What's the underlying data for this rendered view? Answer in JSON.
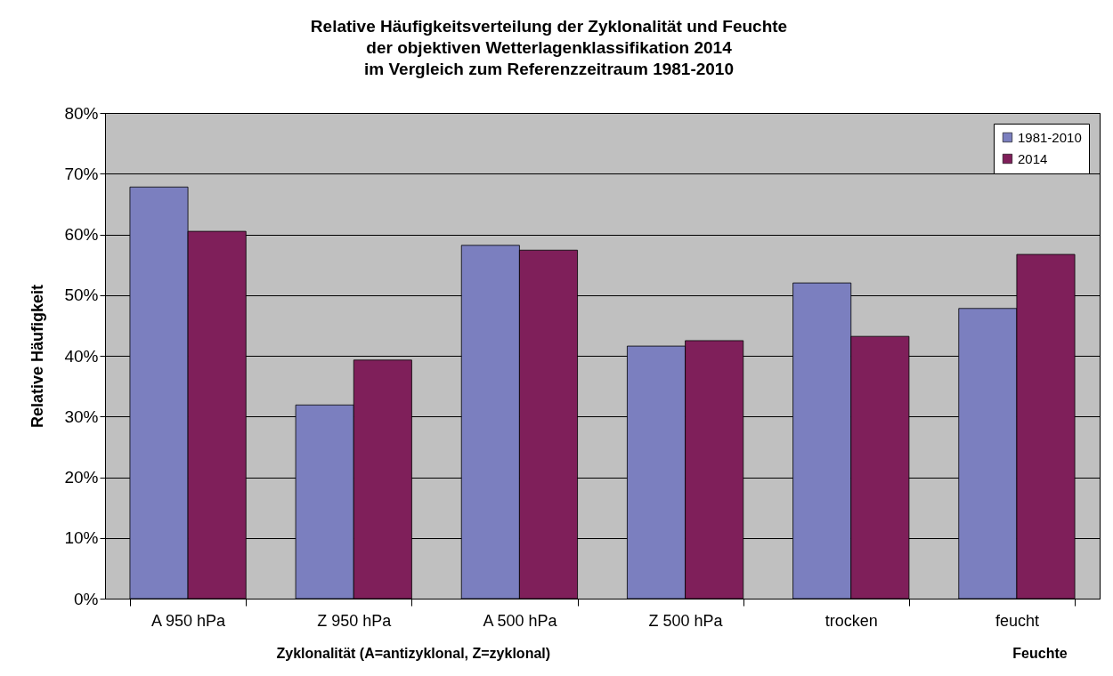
{
  "chart_data": {
    "type": "bar",
    "title": "Relative Häufigkeitsverteilung der Zyklonalität und Feuchte\nder objektiven Wetterlagenklassifikation 2014\nim Vergleich zum Referenzzeitraum 1981-2010",
    "ylabel": "Relative Häufigkeit",
    "categories": [
      "A 950 hPa",
      "Z 950 hPa",
      "A 500 hPa",
      "Z 500 hPa",
      "trocken",
      "feucht"
    ],
    "series": [
      {
        "name": "1981-2010",
        "color": "#7b7fbf",
        "values": [
          67.8,
          31.9,
          58.2,
          41.6,
          52.0,
          47.8
        ]
      },
      {
        "name": "2014",
        "color": "#7f1f5a",
        "values": [
          60.5,
          39.3,
          57.4,
          42.5,
          43.2,
          56.7
        ]
      }
    ],
    "ylim": [
      0,
      80
    ],
    "yticks": [
      {
        "value": 0,
        "label": "0%"
      },
      {
        "value": 10,
        "label": "10%"
      },
      {
        "value": 20,
        "label": "20%"
      },
      {
        "value": 30,
        "label": "30%"
      },
      {
        "value": 40,
        "label": "40%"
      },
      {
        "value": 50,
        "label": "50%"
      },
      {
        "value": 60,
        "label": "60%"
      },
      {
        "value": 70,
        "label": "70%"
      },
      {
        "value": 80,
        "label": "80%"
      }
    ],
    "grid": "y",
    "legend": "top right",
    "annotations": [
      "Zyklonalität (A=antizyklonal, Z=zyklonal)",
      "Feuchte"
    ]
  }
}
